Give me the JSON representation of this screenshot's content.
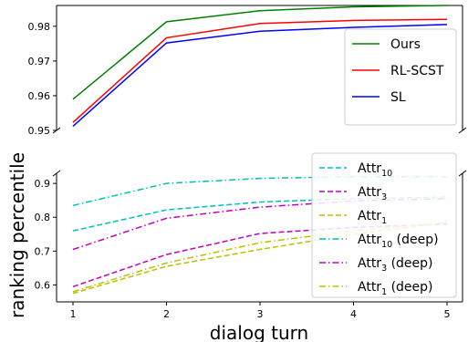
{
  "chart_data": [
    {
      "type": "line",
      "panel": "top",
      "x": [
        1,
        2,
        3,
        4,
        5
      ],
      "ylim": [
        0.95,
        0.986
      ],
      "yticks": [
        "0.95",
        "0.96",
        "0.97",
        "0.98"
      ],
      "legend_position": "lower-right",
      "series": [
        {
          "name": "Ours",
          "color": "#008000",
          "style": "solid",
          "values": [
            0.959,
            0.9813,
            0.9845,
            0.9856,
            0.986
          ]
        },
        {
          "name": "RL-SCST",
          "color": "#ff0000",
          "style": "solid",
          "values": [
            0.9523,
            0.9767,
            0.9808,
            0.9817,
            0.982
          ]
        },
        {
          "name": "SL",
          "color": "#0000ff",
          "style": "solid",
          "values": [
            0.9512,
            0.9752,
            0.9786,
            0.9797,
            0.9805
          ]
        }
      ]
    },
    {
      "type": "line",
      "panel": "bottom",
      "x": [
        1,
        2,
        3,
        4,
        5
      ],
      "xticks": [
        "1",
        "2",
        "3",
        "4",
        "5"
      ],
      "ylim": [
        0.55,
        0.93
      ],
      "yticks": [
        "0.6",
        "0.7",
        "0.8",
        "0.9"
      ],
      "legend_position": "lower-right",
      "series": [
        {
          "name": "Attr",
          "sub": "10",
          "suffix": "",
          "color": "#00bfbf",
          "style": "dashed",
          "values": [
            0.76,
            0.822,
            0.845,
            0.855,
            0.86
          ]
        },
        {
          "name": "Attr",
          "sub": "3",
          "suffix": "",
          "color": "#bf00bf",
          "style": "dashed",
          "values": [
            0.595,
            0.69,
            0.752,
            0.77,
            0.78
          ]
        },
        {
          "name": "Attr",
          "sub": "1",
          "suffix": "",
          "color": "#bfbf00",
          "style": "dashed",
          "values": [
            0.575,
            0.655,
            0.705,
            0.75,
            0.785
          ]
        },
        {
          "name": "Attr",
          "sub": "10",
          "suffix": " (deep)",
          "color": "#00bfbf",
          "style": "dashdot",
          "values": [
            0.835,
            0.9,
            0.915,
            0.92,
            0.92
          ]
        },
        {
          "name": "Attr",
          "sub": "3",
          "suffix": " (deep)",
          "color": "#bf00bf",
          "style": "dashdot",
          "values": [
            0.705,
            0.797,
            0.83,
            0.848,
            0.855
          ]
        },
        {
          "name": "Attr",
          "sub": "1",
          "suffix": " (deep)",
          "color": "#bfbf00",
          "style": "dashdot",
          "values": [
            0.58,
            0.665,
            0.725,
            0.76,
            0.785
          ]
        }
      ]
    }
  ],
  "xlabel": "dialog turn",
  "ylabel": "ranking percentile"
}
